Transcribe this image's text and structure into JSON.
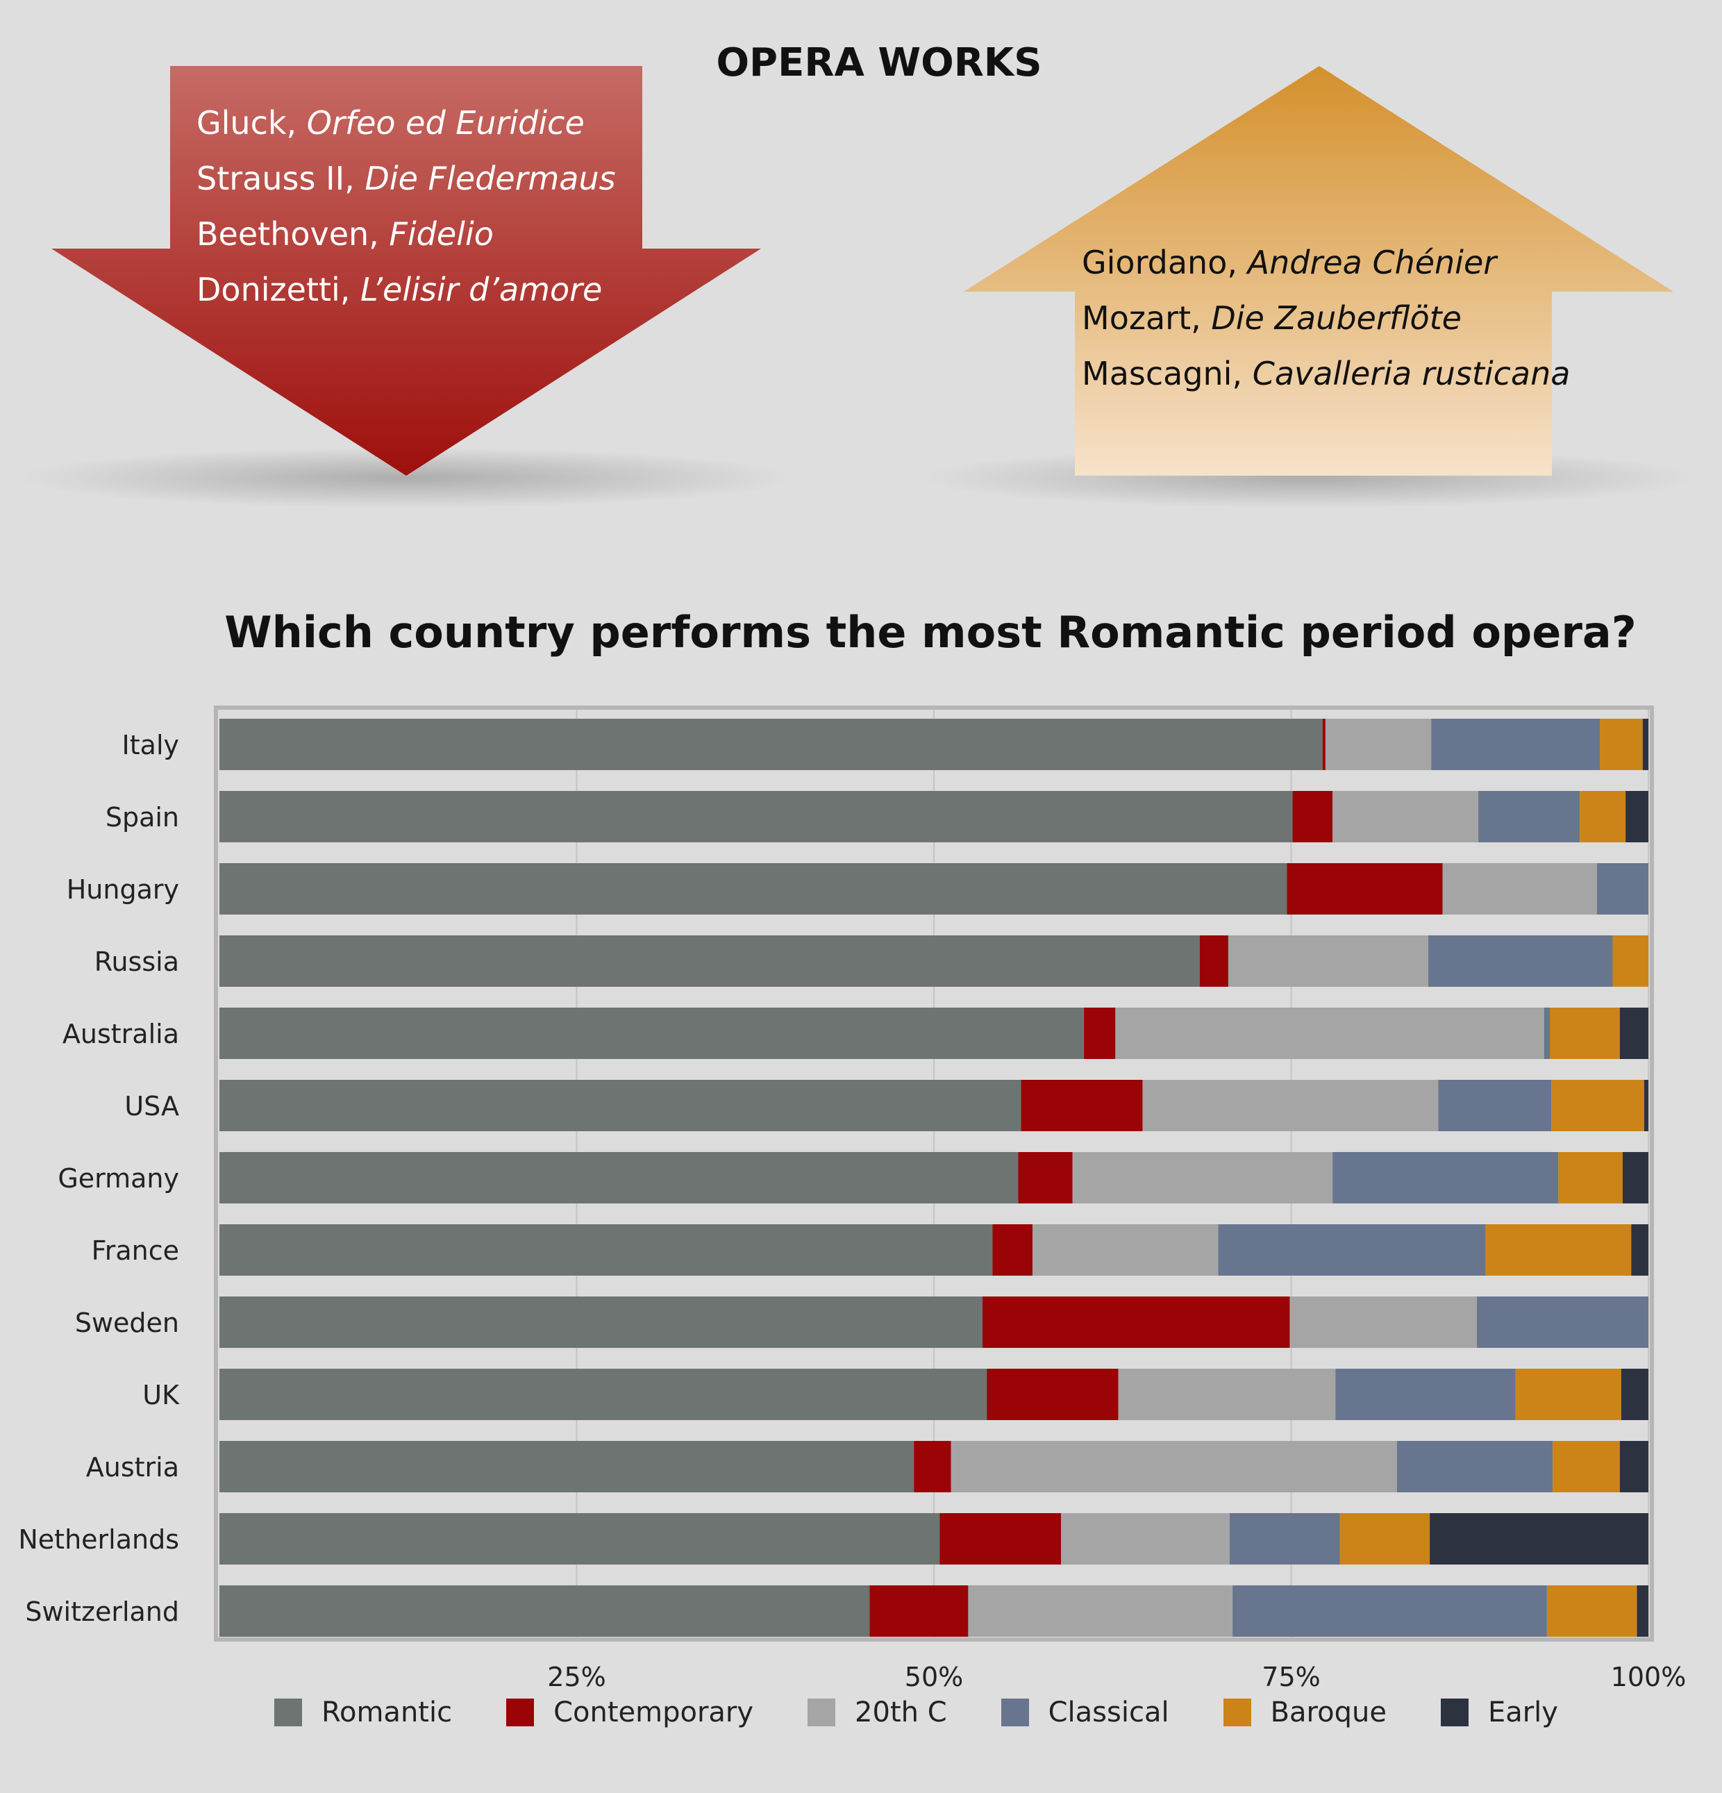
{
  "page_title": "OPERA WORKS",
  "down_works": [
    {
      "composer": "Gluck, ",
      "work": "Orfeo ed Euridice"
    },
    {
      "composer": "Strauss II, ",
      "work": "Die Fledermaus"
    },
    {
      "composer": "Beethoven, ",
      "work": "Fidelio"
    },
    {
      "composer": "Donizetti, ",
      "work": "L’elisir d’amore"
    }
  ],
  "up_works": [
    {
      "composer": "Giordano, ",
      "work": "Andrea Chénier"
    },
    {
      "composer": "Mozart, ",
      "work": "Die Zauberflöte"
    },
    {
      "composer": "Mascagni, ",
      "work": "Cavalleria rusticana"
    }
  ],
  "colors": {
    "down_arrow_top": "#c66b64",
    "down_arrow_bottom": "#9e0f0c",
    "up_arrow_top": "#d4902c",
    "up_arrow_bottom": "#f6e2ca"
  },
  "chart_data": {
    "type": "bar",
    "orientation": "horizontal",
    "stacked": true,
    "title": "Which country performs the most Romantic period opera?",
    "xlim": [
      0,
      100
    ],
    "x_ticks": [
      "25%",
      "50%",
      "75%",
      "100%"
    ],
    "x_tick_values": [
      25,
      50,
      75,
      100
    ],
    "grid": true,
    "legend_position": "bottom",
    "categories": [
      "Italy",
      "Spain",
      "Hungary",
      "Russia",
      "Australia",
      "USA",
      "Germany",
      "France",
      "Sweden",
      "UK",
      "Austria",
      "Netherlands",
      "Switzerland"
    ],
    "series": [
      {
        "name": "Romantic",
        "color": "#6e7472",
        "values": [
          77.2,
          75.1,
          74.7,
          68.6,
          60.5,
          56.1,
          55.9,
          54.1,
          53.4,
          53.7,
          48.6,
          50.4,
          45.5
        ]
      },
      {
        "name": "Contemporary",
        "color": "#9a0406",
        "values": [
          0.2,
          2.8,
          10.9,
          2.0,
          2.2,
          8.5,
          3.8,
          2.8,
          21.5,
          9.2,
          2.6,
          8.5,
          6.9
        ]
      },
      {
        "name": "20th C",
        "color": "#a5a5a5",
        "values": [
          7.4,
          10.2,
          10.8,
          14.0,
          30.0,
          20.7,
          18.2,
          13.0,
          13.1,
          15.2,
          31.2,
          11.8,
          18.5
        ]
      },
      {
        "name": "Classical",
        "color": "#67758f",
        "values": [
          11.8,
          7.1,
          3.6,
          12.9,
          0.4,
          7.9,
          15.8,
          18.7,
          12.0,
          12.6,
          10.9,
          7.7,
          22.0
        ]
      },
      {
        "name": "Baroque",
        "color": "#cc8419",
        "values": [
          3.0,
          3.2,
          0.0,
          2.5,
          4.9,
          6.5,
          4.5,
          10.2,
          0.0,
          7.4,
          4.7,
          6.3,
          6.3
        ]
      },
      {
        "name": "Early",
        "color": "#2c3240",
        "values": [
          0.4,
          1.6,
          0.0,
          0.0,
          2.0,
          0.3,
          1.8,
          1.2,
          0.0,
          1.9,
          2.0,
          15.3,
          0.8
        ]
      }
    ]
  }
}
